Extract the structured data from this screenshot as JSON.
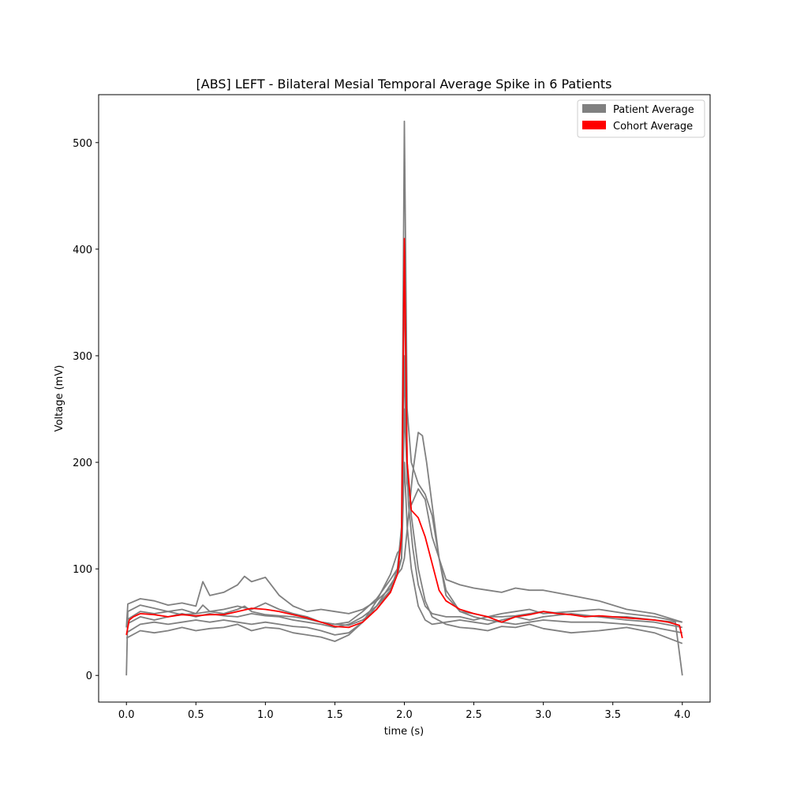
{
  "chart_data": {
    "type": "line",
    "title": "[ABS] LEFT - Bilateral Mesial Temporal Average Spike in 6 Patients",
    "xlabel": "time (s)",
    "ylabel": "Voltage (mV)",
    "xlim": [
      -0.2,
      4.2
    ],
    "ylim": [
      -25,
      545
    ],
    "xticks": [
      0.0,
      0.5,
      1.0,
      1.5,
      2.0,
      2.5,
      3.0,
      3.5,
      4.0
    ],
    "xtick_labels": [
      "0.0",
      "0.5",
      "1.0",
      "1.5",
      "2.0",
      "2.5",
      "3.0",
      "3.5",
      "4.0"
    ],
    "yticks": [
      0,
      100,
      200,
      300,
      400,
      500
    ],
    "ytick_labels": [
      "0",
      "100",
      "200",
      "300",
      "400",
      "500"
    ],
    "grid": false,
    "legend": {
      "placement": "top-right",
      "entries": [
        {
          "label": "Patient Average",
          "color": "#808080"
        },
        {
          "label": "Cohort Average",
          "color": "#ff0000"
        }
      ]
    },
    "series": [
      {
        "group": "Patient Average",
        "color": "#808080",
        "x": [
          0.0,
          0.01,
          0.1,
          0.2,
          0.3,
          0.4,
          0.5,
          0.55,
          0.6,
          0.7,
          0.8,
          0.85,
          0.9,
          1.0,
          1.1,
          1.2,
          1.3,
          1.4,
          1.5,
          1.6,
          1.7,
          1.8,
          1.9,
          1.95,
          1.98,
          2.0,
          2.02,
          2.05,
          2.1,
          2.15,
          2.2,
          2.25,
          2.3,
          2.4,
          2.5,
          2.6,
          2.7,
          2.8,
          2.9,
          3.0,
          3.2,
          3.4,
          3.6,
          3.8,
          3.95,
          4.0
        ],
        "y": [
          0,
          60,
          66,
          63,
          60,
          57,
          58,
          66,
          60,
          58,
          62,
          65,
          60,
          57,
          56,
          55,
          53,
          50,
          48,
          47,
          52,
          62,
          80,
          100,
          140,
          520,
          250,
          200,
          180,
          170,
          150,
          110,
          80,
          60,
          58,
          55,
          55,
          56,
          58,
          60,
          57,
          55,
          55,
          52,
          50,
          0
        ]
      },
      {
        "group": "Patient Average",
        "color": "#808080",
        "x": [
          0.0,
          0.01,
          0.1,
          0.2,
          0.3,
          0.4,
          0.5,
          0.55,
          0.6,
          0.7,
          0.8,
          0.85,
          0.9,
          1.0,
          1.1,
          1.2,
          1.3,
          1.4,
          1.5,
          1.6,
          1.7,
          1.8,
          1.9,
          1.95,
          1.98,
          2.0,
          2.02,
          2.05,
          2.1,
          2.15,
          2.2,
          2.3,
          2.4,
          2.5,
          2.6,
          2.7,
          2.8,
          2.9,
          3.0,
          3.2,
          3.4,
          3.6,
          3.8,
          4.0
        ],
        "y": [
          45,
          67,
          72,
          70,
          66,
          68,
          65,
          88,
          75,
          78,
          85,
          93,
          88,
          92,
          75,
          65,
          60,
          62,
          60,
          58,
          62,
          70,
          82,
          95,
          110,
          300,
          180,
          160,
          175,
          165,
          130,
          90,
          85,
          82,
          80,
          78,
          82,
          80,
          80,
          75,
          70,
          62,
          58,
          50
        ]
      },
      {
        "group": "Patient Average",
        "color": "#808080",
        "x": [
          0.0,
          0.1,
          0.2,
          0.3,
          0.4,
          0.5,
          0.6,
          0.7,
          0.8,
          0.9,
          1.0,
          1.1,
          1.2,
          1.3,
          1.4,
          1.5,
          1.6,
          1.7,
          1.8,
          1.9,
          1.95,
          1.98,
          2.0,
          2.03,
          2.06,
          2.1,
          2.13,
          2.16,
          2.2,
          2.25,
          2.3,
          2.4,
          2.5,
          2.6,
          2.7,
          2.8,
          2.9,
          3.0,
          3.2,
          3.4,
          3.6,
          3.8,
          4.0
        ],
        "y": [
          40,
          48,
          50,
          48,
          50,
          52,
          50,
          52,
          50,
          48,
          50,
          48,
          46,
          45,
          42,
          38,
          40,
          50,
          65,
          85,
          95,
          100,
          110,
          150,
          190,
          228,
          225,
          200,
          160,
          110,
          75,
          60,
          55,
          52,
          50,
          48,
          50,
          52,
          50,
          50,
          48,
          45,
          40
        ]
      },
      {
        "group": "Patient Average",
        "color": "#808080",
        "x": [
          0.0,
          0.1,
          0.2,
          0.3,
          0.4,
          0.5,
          0.6,
          0.7,
          0.8,
          0.9,
          1.0,
          1.1,
          1.2,
          1.3,
          1.4,
          1.5,
          1.6,
          1.7,
          1.8,
          1.9,
          1.95,
          1.98,
          2.0,
          2.02,
          2.05,
          2.1,
          2.15,
          2.2,
          2.3,
          2.4,
          2.5,
          2.6,
          2.7,
          2.8,
          2.9,
          3.0,
          3.2,
          3.4,
          3.6,
          3.8,
          4.0
        ],
        "y": [
          35,
          42,
          40,
          42,
          45,
          42,
          44,
          45,
          48,
          42,
          45,
          44,
          40,
          38,
          36,
          32,
          38,
          50,
          70,
          95,
          115,
          120,
          380,
          200,
          150,
          100,
          70,
          55,
          48,
          45,
          44,
          42,
          46,
          45,
          48,
          44,
          40,
          42,
          45,
          40,
          30
        ]
      },
      {
        "group": "Patient Average",
        "color": "#808080",
        "x": [
          0.0,
          0.1,
          0.2,
          0.3,
          0.4,
          0.5,
          0.6,
          0.7,
          0.8,
          0.9,
          1.0,
          1.1,
          1.2,
          1.3,
          1.4,
          1.5,
          1.6,
          1.7,
          1.8,
          1.9,
          1.95,
          1.98,
          2.0,
          2.02,
          2.05,
          2.1,
          2.15,
          2.2,
          2.3,
          2.4,
          2.5,
          2.6,
          2.7,
          2.8,
          2.9,
          3.0,
          3.2,
          3.4,
          3.6,
          3.8,
          4.0
        ],
        "y": [
          48,
          55,
          52,
          55,
          58,
          55,
          58,
          56,
          55,
          58,
          56,
          55,
          52,
          50,
          48,
          45,
          48,
          55,
          65,
          80,
          95,
          110,
          200,
          140,
          100,
          65,
          52,
          48,
          50,
          52,
          50,
          48,
          52,
          55,
          52,
          55,
          58,
          55,
          52,
          50,
          45
        ]
      },
      {
        "group": "Patient Average",
        "color": "#808080",
        "x": [
          0.0,
          0.1,
          0.2,
          0.3,
          0.4,
          0.5,
          0.6,
          0.7,
          0.8,
          0.9,
          1.0,
          1.1,
          1.2,
          1.3,
          1.4,
          1.5,
          1.6,
          1.7,
          1.8,
          1.9,
          1.95,
          1.98,
          2.0,
          2.03,
          2.06,
          2.1,
          2.15,
          2.2,
          2.3,
          2.4,
          2.5,
          2.6,
          2.7,
          2.8,
          2.9,
          3.0,
          3.2,
          3.4,
          3.6,
          3.8,
          4.0
        ],
        "y": [
          52,
          60,
          58,
          60,
          62,
          58,
          60,
          62,
          65,
          62,
          68,
          62,
          58,
          55,
          50,
          48,
          50,
          60,
          72,
          90,
          100,
          110,
          250,
          160,
          120,
          85,
          65,
          58,
          55,
          55,
          52,
          55,
          58,
          60,
          62,
          58,
          60,
          62,
          58,
          55,
          50
        ]
      },
      {
        "name": "Cohort Average",
        "color": "#ff0000",
        "x": [
          0.0,
          0.02,
          0.05,
          0.1,
          0.2,
          0.3,
          0.4,
          0.5,
          0.6,
          0.7,
          0.8,
          0.9,
          1.0,
          1.1,
          1.2,
          1.3,
          1.4,
          1.5,
          1.6,
          1.7,
          1.8,
          1.85,
          1.9,
          1.95,
          1.98,
          2.0,
          2.02,
          2.05,
          2.1,
          2.15,
          2.2,
          2.25,
          2.3,
          2.35,
          2.4,
          2.5,
          2.6,
          2.7,
          2.8,
          2.9,
          3.0,
          3.1,
          3.2,
          3.3,
          3.4,
          3.5,
          3.6,
          3.7,
          3.8,
          3.9,
          3.98,
          4.0
        ],
        "y": [
          38,
          52,
          55,
          58,
          57,
          55,
          57,
          56,
          57,
          57,
          60,
          63,
          62,
          60,
          57,
          54,
          50,
          46,
          45,
          50,
          62,
          70,
          78,
          95,
          130,
          410,
          200,
          155,
          148,
          130,
          105,
          80,
          70,
          66,
          62,
          58,
          55,
          50,
          55,
          57,
          60,
          58,
          57,
          55,
          56,
          55,
          54,
          53,
          52,
          50,
          47,
          35
        ]
      }
    ]
  }
}
